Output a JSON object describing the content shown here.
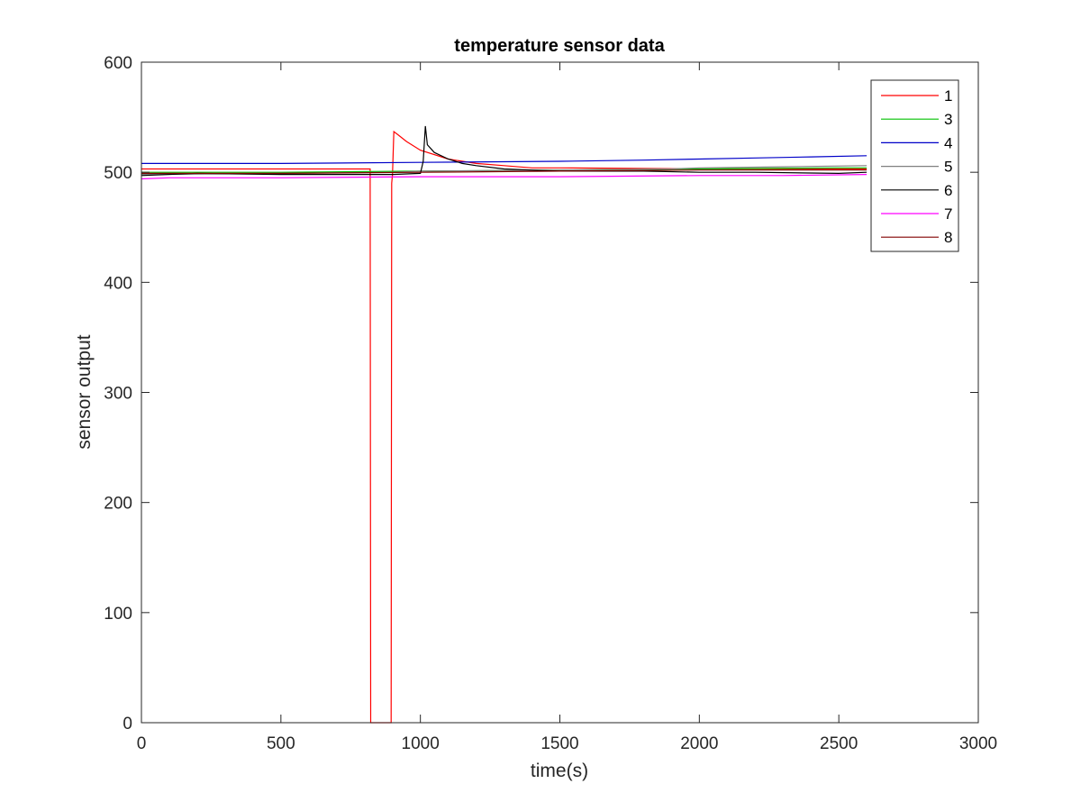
{
  "chart_data": {
    "type": "line",
    "title": "temperature sensor data",
    "xlabel": "time(s)",
    "ylabel": "sensor output",
    "xlim": [
      0,
      3000
    ],
    "ylim": [
      0,
      600
    ],
    "xticks": [
      0,
      500,
      1000,
      1500,
      2000,
      2500,
      3000
    ],
    "yticks": [
      0,
      100,
      200,
      300,
      400,
      500,
      600
    ],
    "grid": false,
    "legend_position": "top-right",
    "series": [
      {
        "name": "1",
        "color": "#ff0000",
        "points": [
          [
            0,
            503
          ],
          [
            800,
            503
          ],
          [
            820,
            503
          ],
          [
            822,
            0
          ],
          [
            895,
            0
          ],
          [
            897,
            490
          ],
          [
            900,
            498
          ],
          [
            905,
            537
          ],
          [
            920,
            534
          ],
          [
            950,
            528
          ],
          [
            1000,
            520
          ],
          [
            1100,
            512
          ],
          [
            1200,
            508
          ],
          [
            1300,
            506
          ],
          [
            1400,
            504
          ],
          [
            1500,
            504
          ],
          [
            2000,
            503
          ],
          [
            2500,
            503
          ],
          [
            2600,
            503
          ]
        ]
      },
      {
        "name": "3",
        "color": "#00c000",
        "points": [
          [
            0,
            500
          ],
          [
            500,
            500
          ],
          [
            1000,
            501
          ],
          [
            1500,
            502
          ],
          [
            2000,
            503
          ],
          [
            2500,
            504
          ],
          [
            2600,
            504
          ]
        ]
      },
      {
        "name": "4",
        "color": "#0000c8",
        "points": [
          [
            0,
            508
          ],
          [
            500,
            508
          ],
          [
            1000,
            509
          ],
          [
            1500,
            510
          ],
          [
            1800,
            511
          ],
          [
            2000,
            512
          ],
          [
            2200,
            513
          ],
          [
            2400,
            514
          ],
          [
            2600,
            515
          ]
        ]
      },
      {
        "name": "5",
        "color": "#808080",
        "points": [
          [
            0,
            498
          ],
          [
            500,
            499
          ],
          [
            900,
            500
          ],
          [
            1000,
            501
          ],
          [
            1500,
            502
          ],
          [
            1900,
            503
          ],
          [
            2000,
            504
          ],
          [
            2300,
            505
          ],
          [
            2600,
            506
          ]
        ]
      },
      {
        "name": "6",
        "color": "#000000",
        "points": [
          [
            0,
            497
          ],
          [
            200,
            499
          ],
          [
            500,
            498
          ],
          [
            800,
            498
          ],
          [
            880,
            498
          ],
          [
            900,
            498
          ],
          [
            1000,
            499
          ],
          [
            1010,
            510
          ],
          [
            1018,
            542
          ],
          [
            1025,
            525
          ],
          [
            1050,
            518
          ],
          [
            1100,
            512
          ],
          [
            1150,
            508
          ],
          [
            1200,
            506
          ],
          [
            1300,
            503
          ],
          [
            1400,
            502
          ],
          [
            1500,
            501
          ],
          [
            1800,
            501
          ],
          [
            2000,
            500
          ],
          [
            2200,
            500
          ],
          [
            2500,
            499
          ],
          [
            2600,
            500
          ]
        ]
      },
      {
        "name": "7",
        "color": "#ff00ff",
        "points": [
          [
            0,
            494
          ],
          [
            100,
            495
          ],
          [
            500,
            495
          ],
          [
            1000,
            496
          ],
          [
            1500,
            496
          ],
          [
            2000,
            497
          ],
          [
            2300,
            497
          ],
          [
            2600,
            498
          ]
        ]
      },
      {
        "name": "8",
        "color": "#800000",
        "points": [
          [
            0,
            499
          ],
          [
            500,
            499
          ],
          [
            1000,
            500
          ],
          [
            1500,
            501
          ],
          [
            2000,
            502
          ],
          [
            2500,
            502
          ],
          [
            2600,
            502
          ]
        ]
      }
    ]
  }
}
